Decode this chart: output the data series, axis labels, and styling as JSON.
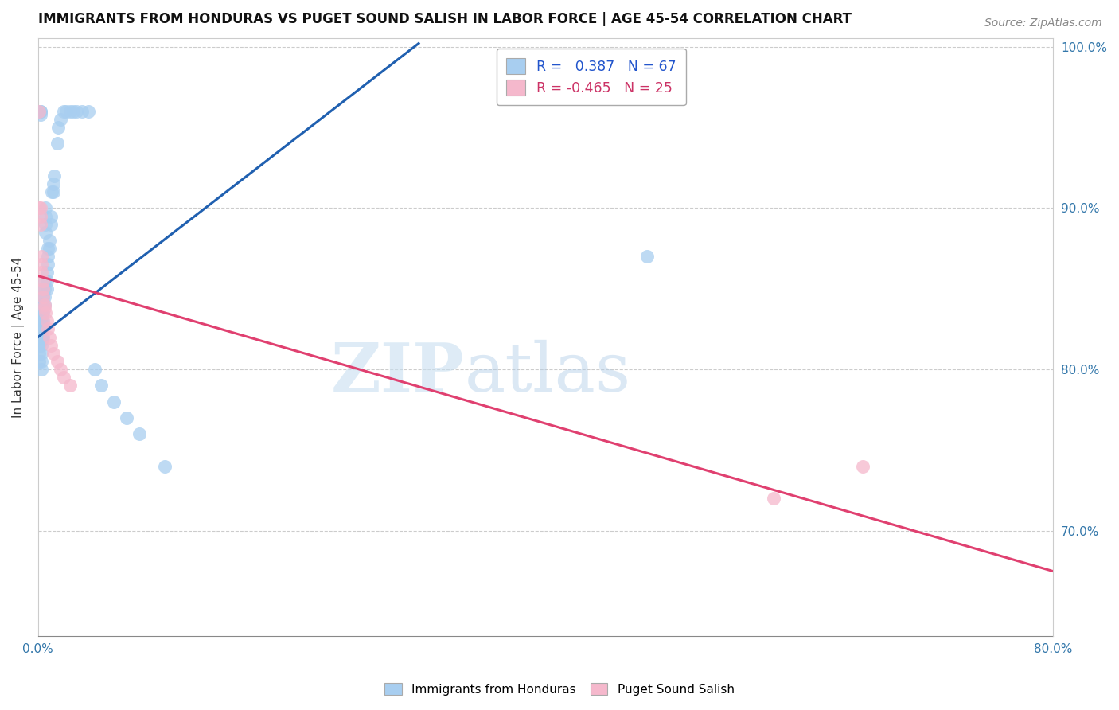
{
  "title": "IMMIGRANTS FROM HONDURAS VS PUGET SOUND SALISH IN LABOR FORCE | AGE 45-54 CORRELATION CHART",
  "source": "Source: ZipAtlas.com",
  "ylabel": "In Labor Force | Age 45-54",
  "xlim": [
    0.0,
    0.8
  ],
  "ylim": [
    0.635,
    1.005
  ],
  "xticks_show": [
    0.0,
    0.8
  ],
  "yticks_right": [
    0.7,
    0.8,
    0.9,
    1.0
  ],
  "blue_R": 0.387,
  "blue_N": 67,
  "pink_R": -0.465,
  "pink_N": 25,
  "blue_color": "#a8cef0",
  "pink_color": "#f5b8cc",
  "blue_line_color": "#2060b0",
  "pink_line_color": "#e04070",
  "legend_label_blue": "Immigrants from Honduras",
  "legend_label_pink": "Puget Sound Salish",
  "watermark_zip": "ZIP",
  "watermark_atlas": "atlas",
  "blue_x": [
    0.001,
    0.001,
    0.001,
    0.001,
    0.002,
    0.002,
    0.002,
    0.002,
    0.002,
    0.002,
    0.002,
    0.003,
    0.003,
    0.003,
    0.003,
    0.003,
    0.003,
    0.003,
    0.003,
    0.003,
    0.003,
    0.004,
    0.004,
    0.004,
    0.004,
    0.004,
    0.004,
    0.004,
    0.005,
    0.005,
    0.005,
    0.005,
    0.006,
    0.006,
    0.006,
    0.006,
    0.007,
    0.007,
    0.007,
    0.008,
    0.008,
    0.008,
    0.009,
    0.009,
    0.01,
    0.01,
    0.011,
    0.012,
    0.012,
    0.013,
    0.015,
    0.016,
    0.018,
    0.02,
    0.022,
    0.025,
    0.028,
    0.03,
    0.035,
    0.04,
    0.045,
    0.05,
    0.06,
    0.07,
    0.08,
    0.1,
    0.48
  ],
  "blue_y": [
    0.82,
    0.815,
    0.81,
    0.805,
    0.96,
    0.96,
    0.958,
    0.835,
    0.83,
    0.825,
    0.82,
    0.84,
    0.835,
    0.83,
    0.825,
    0.82,
    0.818,
    0.815,
    0.81,
    0.805,
    0.8,
    0.85,
    0.845,
    0.84,
    0.835,
    0.83,
    0.825,
    0.82,
    0.855,
    0.85,
    0.845,
    0.84,
    0.9,
    0.895,
    0.89,
    0.885,
    0.86,
    0.855,
    0.85,
    0.875,
    0.87,
    0.865,
    0.88,
    0.875,
    0.895,
    0.89,
    0.91,
    0.915,
    0.91,
    0.92,
    0.94,
    0.95,
    0.955,
    0.96,
    0.96,
    0.96,
    0.96,
    0.96,
    0.96,
    0.96,
    0.8,
    0.79,
    0.78,
    0.77,
    0.76,
    0.74,
    0.87
  ],
  "pink_x": [
    0.001,
    0.001,
    0.002,
    0.002,
    0.002,
    0.003,
    0.003,
    0.003,
    0.004,
    0.004,
    0.004,
    0.005,
    0.005,
    0.006,
    0.007,
    0.008,
    0.009,
    0.01,
    0.012,
    0.015,
    0.018,
    0.02,
    0.025,
    0.58,
    0.65
  ],
  "pink_y": [
    0.96,
    0.9,
    0.9,
    0.895,
    0.89,
    0.87,
    0.865,
    0.86,
    0.855,
    0.85,
    0.845,
    0.84,
    0.838,
    0.835,
    0.83,
    0.825,
    0.82,
    0.815,
    0.81,
    0.805,
    0.8,
    0.795,
    0.79,
    0.72,
    0.74
  ],
  "blue_line_x0": 0.0,
  "blue_line_y0": 0.82,
  "blue_line_x1": 0.3,
  "blue_line_y1": 1.002,
  "pink_line_x0": 0.0,
  "pink_line_y0": 0.858,
  "pink_line_x1": 0.8,
  "pink_line_y1": 0.675
}
